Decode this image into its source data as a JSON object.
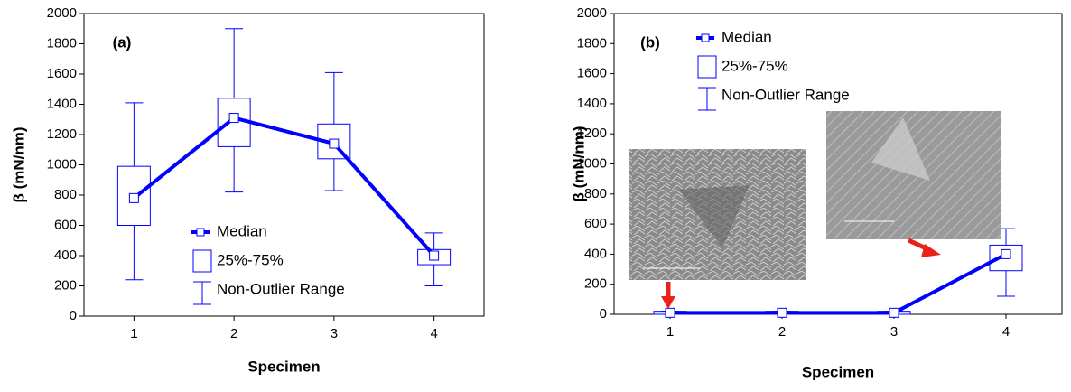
{
  "chart_data": [
    {
      "type": "box",
      "annotation": "(a)",
      "y_label": "β (mN/nm)",
      "x_label": "Specimen",
      "categories": [
        "1",
        "2",
        "3",
        "4"
      ],
      "median": [
        780,
        1310,
        1140,
        400
      ],
      "q1": [
        600,
        1120,
        1040,
        340
      ],
      "q3": [
        990,
        1440,
        1270,
        440
      ],
      "whisker_low": [
        240,
        820,
        830,
        200
      ],
      "whisker_high": [
        1410,
        1900,
        1610,
        550
      ],
      "color": "#0000ff",
      "legend": [
        "Median",
        "25%-75%",
        "Non-Outlier Range"
      ],
      "ylim": [
        0,
        2000
      ],
      "yticks": [
        0,
        200,
        400,
        600,
        800,
        1000,
        1200,
        1400,
        1600,
        1800,
        2000
      ]
    },
    {
      "type": "box",
      "annotation": "(b)",
      "y_label": "β (mN/nm)",
      "x_label": "Specimen",
      "categories": [
        "1",
        "2",
        "3",
        "4"
      ],
      "median": [
        10,
        10,
        10,
        400
      ],
      "q1": [
        0,
        0,
        0,
        290
      ],
      "q3": [
        20,
        20,
        20,
        460
      ],
      "whisker_low": [
        0,
        0,
        0,
        120
      ],
      "whisker_high": [
        20,
        20,
        20,
        570
      ],
      "color": "#0000ff",
      "legend": [
        "Median",
        "25%-75%",
        "Non-Outlier Range"
      ],
      "ylim": [
        0,
        2000
      ],
      "yticks": [
        0,
        200,
        400,
        600,
        800,
        1000,
        1200,
        1400,
        1600,
        1800,
        2000
      ]
    }
  ]
}
